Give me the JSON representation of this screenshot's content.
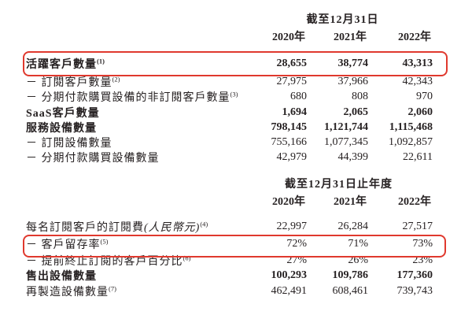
{
  "colors": {
    "page_background": "#ffffff",
    "text": "#262122",
    "highlight_red": "#e0392e"
  },
  "table1": {
    "period_header": "截至12月31日",
    "years": [
      "2020年",
      "2021年",
      "2022年"
    ],
    "rows": [
      {
        "label": "活躍客戶數量",
        "sup": "(1)",
        "values": [
          "28,655",
          "38,774",
          "43,313"
        ],
        "bold": true,
        "highlighted": true
      },
      {
        "label": "－ 訂閱客戶數量",
        "sup": "(2)",
        "values": [
          "27,975",
          "37,966",
          "42,343"
        ],
        "bold": false
      },
      {
        "label": "－ 分期付款購買設備的非訂閱客戶數量",
        "sup": "(3)",
        "values": [
          "680",
          "808",
          "970"
        ],
        "bold": false
      },
      {
        "label": "SaaS客戶數量",
        "values": [
          "1,694",
          "2,065",
          "2,060"
        ],
        "bold": true
      },
      {
        "label": "服務設備數量",
        "values": [
          "798,145",
          "1,121,744",
          "1,115,468"
        ],
        "bold": true
      },
      {
        "label": "－ 訂閱設備數量",
        "values": [
          "755,166",
          "1,077,345",
          "1,092,857"
        ],
        "bold": false
      },
      {
        "label": "－ 分期付款購買設備數量",
        "values": [
          "42,979",
          "44,399",
          "22,611"
        ],
        "bold": false
      }
    ]
  },
  "table2": {
    "period_header": "截至12月31日止年度",
    "years": [
      "2020年",
      "2021年",
      "2022年"
    ],
    "rows": [
      {
        "label": "每名訂閱客戶的訂閱費",
        "label_paren": "(人民幣元)",
        "sup": "(4)",
        "values": [
          "22,997",
          "26,284",
          "27,517"
        ],
        "bold": false
      },
      {
        "label": "－ 客戶留存率",
        "sup": "(5)",
        "values": [
          "72%",
          "71%",
          "73%"
        ],
        "bold": false,
        "highlighted": true
      },
      {
        "label": "－ 提前終止訂閱的客戶百分比",
        "sup": "(6)",
        "values": [
          "27%",
          "26%",
          "23%"
        ],
        "bold": false
      },
      {
        "label": "售出設備數量",
        "values": [
          "100,293",
          "109,786",
          "177,360"
        ],
        "bold": true
      },
      {
        "label": "再製造設備數量",
        "sup": "(7)",
        "values": [
          "462,491",
          "608,461",
          "739,743"
        ],
        "bold": false
      }
    ]
  }
}
